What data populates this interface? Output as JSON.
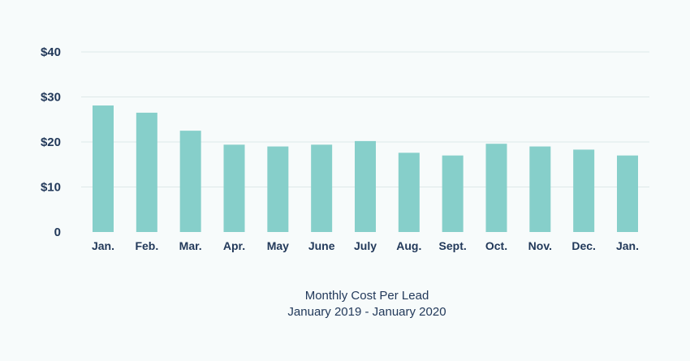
{
  "chart_data": {
    "type": "bar",
    "title": "Monthly Cost Per Lead",
    "subtitle": "January 2019 - January 2020",
    "xlabel": "",
    "ylabel": "",
    "categories": [
      "Jan.",
      "Feb.",
      "Mar.",
      "Apr.",
      "May",
      "June",
      "July",
      "Aug.",
      "Sept.",
      "Oct.",
      "Nov.",
      "Dec.",
      "Jan."
    ],
    "values": [
      28.1,
      26.5,
      22.5,
      19.4,
      19.0,
      19.4,
      20.2,
      17.6,
      17.0,
      19.6,
      19.0,
      18.3,
      17.0
    ],
    "ylim": [
      0,
      40
    ],
    "yticks": [
      0,
      10,
      20,
      30,
      40
    ],
    "ytick_labels": [
      "0",
      "$10",
      "$20",
      "$30",
      "$40"
    ],
    "grid": true,
    "legend": "none",
    "colors": {
      "bar": "#86cfca",
      "text": "#22395a",
      "grid": "#dde8e8",
      "background": "#f7fbfb"
    }
  }
}
